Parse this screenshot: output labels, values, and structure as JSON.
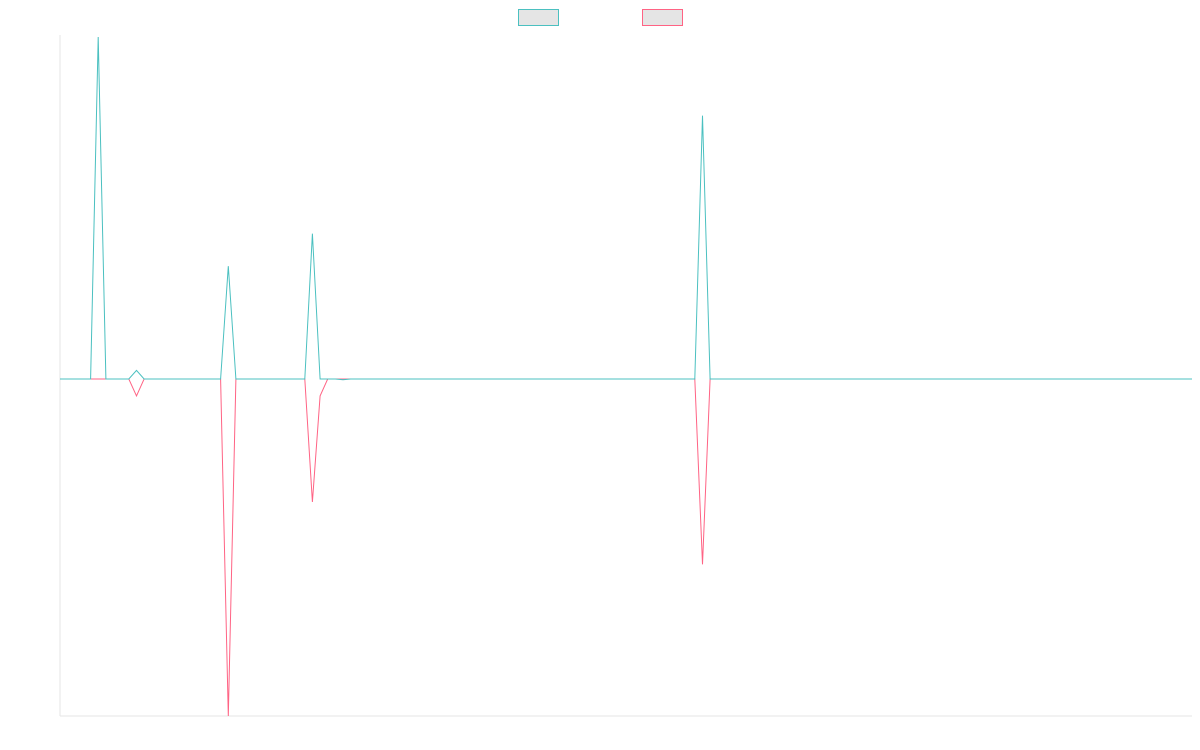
{
  "chart_data": {
    "type": "line",
    "title": "",
    "xlabel": "",
    "ylabel": "",
    "legend_position": "top-center",
    "grid": false,
    "ylim": [
      -1,
      1
    ],
    "x_count": 148,
    "series": [
      {
        "name": "",
        "color": "#4bc0c0",
        "fill": "#e5e5e5",
        "points": [
          {
            "x": 0,
            "y": 0
          },
          {
            "x": 4,
            "y": 0
          },
          {
            "x": 5,
            "y": 1.0
          },
          {
            "x": 6,
            "y": 0
          },
          {
            "x": 9,
            "y": 0
          },
          {
            "x": 10,
            "y": 0.025
          },
          {
            "x": 11,
            "y": 0
          },
          {
            "x": 21,
            "y": 0
          },
          {
            "x": 22,
            "y": 0.33
          },
          {
            "x": 23,
            "y": 0
          },
          {
            "x": 32,
            "y": 0
          },
          {
            "x": 33,
            "y": 0.425
          },
          {
            "x": 34,
            "y": 0
          },
          {
            "x": 36,
            "y": 0
          },
          {
            "x": 37,
            "y": -0.002
          },
          {
            "x": 38,
            "y": 0
          },
          {
            "x": 83,
            "y": 0
          },
          {
            "x": 84,
            "y": 0.77
          },
          {
            "x": 85,
            "y": 0
          },
          {
            "x": 148,
            "y": 0
          }
        ]
      },
      {
        "name": "",
        "color": "#ff6384",
        "fill": "#e5e5e5",
        "points": [
          {
            "x": 0,
            "y": 0
          },
          {
            "x": 9,
            "y": 0
          },
          {
            "x": 10,
            "y": -0.05
          },
          {
            "x": 11,
            "y": 0
          },
          {
            "x": 21,
            "y": 0
          },
          {
            "x": 22,
            "y": -1.0
          },
          {
            "x": 23,
            "y": 0
          },
          {
            "x": 32,
            "y": 0
          },
          {
            "x": 33,
            "y": -0.365
          },
          {
            "x": 34,
            "y": -0.05
          },
          {
            "x": 35,
            "y": 0
          },
          {
            "x": 83,
            "y": 0
          },
          {
            "x": 84,
            "y": -0.55
          },
          {
            "x": 85,
            "y": 0
          },
          {
            "x": 148,
            "y": 0
          }
        ]
      }
    ]
  }
}
